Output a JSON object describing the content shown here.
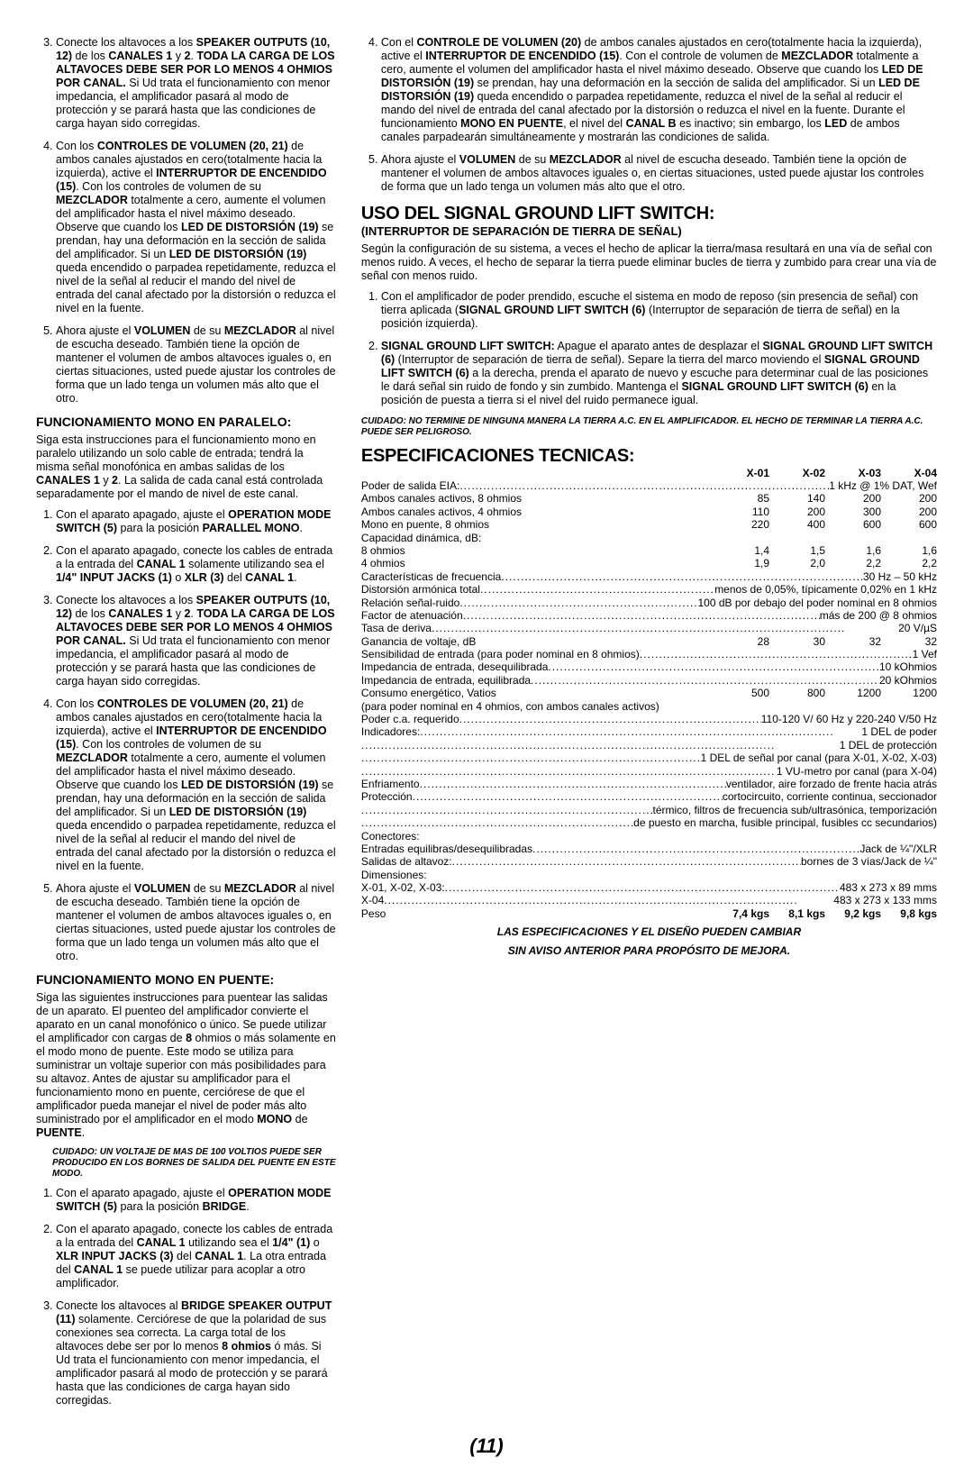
{
  "left": {
    "list1": {
      "start": 3,
      "items": [
        "Conecte los altavoces a los <b>SPEAKER OUTPUTS (10, 12)</b> de los <b>CANALES 1</b> y <b>2</b>. <b>TODA LA CARGA DE LOS ALTAVOCES DEBE SER POR LO MENOS 4 OHMIOS POR CANAL.</b> Si Ud trata el funcionamiento con menor impedancia, el amplificador pasará al modo de protección y se parará hasta que las condiciones de carga hayan sido corregidas.",
        "Con los <b>CONTROLES DE VOLUMEN (20, 21)</b> de ambos canales ajustados en cero(totalmente hacia la izquierda), active el <b>INTERRUPTOR DE ENCENDIDO (15)</b>. Con los controles de volumen de su <b>MEZCLADOR</b> totalmente a cero, aumente el volumen del amplificador hasta el nivel máximo deseado. Observe que cuando los <b>LED DE DISTORSIÓN (19)</b> se prendan, hay una deformación en la sección de salida del amplificador. Si un <b>LED DE DISTORSIÓN (19)</b> queda encendido o parpadea repetidamente, reduzca el nivel de la señal al reducir el mando del nivel de entrada del canal afectado por la distorsión o reduzca el nivel en la fuente.",
        "Ahora ajuste el <b>VOLUMEN</b> de su <b>MEZCLADOR</b> al nivel de escucha deseado. También tiene la opción de mantener el volumen de ambos altavoces iguales o, en ciertas situaciones, usted puede ajustar los controles de forma que un lado tenga un volumen más alto que el otro."
      ]
    },
    "h_paralelo": "FUNCIONAMIENTO MONO EN PARALELO:",
    "p_paralelo": "Siga esta instrucciones para el funcionamiento mono en paralelo utilizando un solo cable de entrada; tendrá la misma señal monofónica en ambas salidas de los <b>CANALES 1</b> y <b>2</b>. La salida de cada canal está controlada separadamente por el mando de nivel de este canal.",
    "list2": {
      "start": 1,
      "items": [
        "Con el aparato apagado, ajuste el <b>OPERATION MODE SWITCH (5)</b> para la posición <b>PARALLEL MONO</b>.",
        "Con el aparato apagado, conecte los cables de entrada a la entrada del <b>CANAL 1</b> solamente utilizando sea el <b>1/4\" INPUT JACKS (1)</b> o <b>XLR (3)</b> del <b>CANAL 1</b>.",
        "Conecte los altavoces a los <b>SPEAKER OUTPUTS (10, 12)</b> de los <b>CANALES 1</b> y <b>2</b>. <b>TODA LA CARGA DE LOS ALTAVOCES DEBE SER POR LO MENOS 4 OHMIOS POR CANAL.</b> Si Ud trata el funcionamiento con menor impedancia, el amplificador pasará al modo de protección y se parará hasta que las condiciones de carga hayan sido corregidas.",
        "Con los <b>CONTROLES DE VOLUMEN (20, 21)</b> de ambos canales ajustados en cero(totalmente hacia la izquierda), active el <b>INTERRUPTOR DE ENCENDIDO (15)</b>. Con los controles de volumen de su <b>MEZCLADOR</b> totalmente a cero, aumente el volumen del amplificador hasta el nivel máximo deseado. Observe que cuando los <b>LED DE DISTORSIÓN (19)</b> se prendan, hay una deformación en la sección de salida del amplificador. Si un <b>LED DE DISTORSIÓN (19)</b> queda encendido o parpadea repetidamente, reduzca el nivel de la señal al reducir el mando del nivel de entrada del canal afectado por la distorsión o reduzca el nivel en la fuente.",
        "Ahora ajuste el <b>VOLUMEN</b> de su <b>MEZCLADOR</b> al nivel de escucha deseado. También tiene la opción de mantener el volumen de ambos altavoces iguales o, en ciertas situaciones, usted puede ajustar los controles de forma que un lado tenga un volumen más alto que el otro."
      ]
    },
    "h_puente": "FUNCIONAMIENTO MONO EN PUENTE:",
    "p_puente": "Siga las siguientes instrucciones para puentear las salidas de un aparato. El puenteo del amplificador convierte el aparato en un canal monofónico o único. Se puede utilizar el amplificador con cargas de <b>8</b> ohmios o más solamente en el modo mono de puente. Este modo se utiliza para suministrar un voltaje superior con más posibilidades para su altavoz. Antes de ajustar su amplificador para el funcionamiento mono en puente, cerciórese de que el amplificador pueda manejar el nivel de poder más alto suministrado por el amplificador en el modo <b>MONO</b> de <b>PUENTE</b>.",
    "warn1": "CUIDADO: UN VOLTAJE DE MAS DE 100 VOLTIOS PUEDE SER PRODUCIDO EN LOS BORNES DE SALIDA DEL PUENTE EN ESTE MODO.",
    "list3": {
      "start": 1,
      "items": [
        "Con el aparato apagado, ajuste el <b>OPERATION MODE SWITCH (5)</b> para la posición <b>BRIDGE</b>.",
        "Con el aparato apagado, conecte los cables de entrada a la entrada del <b>CANAL 1</b> utilizando sea el <b>1/4\" (1)</b> o <b>XLR INPUT JACKS (3)</b> del <b>CANAL 1</b>. La otra entrada del <b>CANAL 1</b> se puede utilizar para acoplar a otro amplificador.",
        "Conecte los altavoces al <b>BRIDGE SPEAKER OUTPUT (11)</b> solamente. Cerciórese de que la polaridad de sus conexiones sea correcta. La carga total de los altavoces debe ser por lo menos <b>8 ohmios</b> ó más. Si Ud trata el funcionamiento con menor impedancia, el amplificador pasará al modo de protección y se parará hasta que las condiciones de carga hayan sido corregidas."
      ]
    }
  },
  "right": {
    "list4": {
      "start": 4,
      "items": [
        "Con el <b>CONTROLE DE VOLUMEN (20)</b> de ambos canales ajustados en cero(totalmente hacia la izquierda), active el <b>INTERRUPTOR DE ENCENDIDO (15)</b>. Con el controle de volumen de <b>MEZCLADOR</b> totalmente a cero, aumente el volumen del amplificador hasta el nivel máximo deseado. Observe que cuando los <b>LED DE DISTORSIÓN (19)</b> se prendan, hay una deformación en la sección de salida del amplificador. Si un <b>LED DE DISTORSIÓN (19)</b> queda encendido o parpadea repetidamente, reduzca el nivel de la señal al reducir el mando del nivel de entrada del canal afectado por la distorsión o reduzca el nivel en la fuente. Durante el funcionamiento <b>MONO EN PUENTE</b>, el nivel del <b>CANAL B</b> es inactivo; sin embargo, los <b>LED</b> de ambos canales parpadearán simultáneamente y mostrarán las condiciones de salida.",
        "Ahora ajuste el <b>VOLUMEN</b> de su <b>MEZCLADOR</b> al nivel de escucha deseado. También tiene la opción de mantener el volumen de ambos altavoces iguales o, en ciertas situaciones, usted puede ajustar los controles de forma que un lado tenga un volumen más alto que el otro."
      ]
    },
    "h_uso": "USO DEL SIGNAL GROUND LIFT SWITCH:",
    "sub_uso": "(INTERRUPTOR DE SEPARACIÓN DE TIERRA DE SEÑAL)",
    "p_uso": "Según la configuración de su sistema, a veces el hecho de aplicar la tierra/masa resultará en una vía de señal con menos ruido. A veces, el hecho de separar la tierra puede eliminar bucles de tierra y zumbido para crear una vía de señal con menos ruido.",
    "list5": {
      "start": 1,
      "items": [
        "Con el amplificador de poder prendido, escuche el sistema en modo de reposo (sin presencia de señal) con tierra aplicada (<b>SIGNAL GROUND LIFT SWITCH (6)</b> (Interruptor de separación de tierra de señal) en la posición izquierda).",
        "<b>SIGNAL GROUND LIFT SWITCH:</b> Apague el aparato antes de desplazar el <b>SIGNAL GROUND LIFT SWITCH (6)</b> (Interruptor de separación de tierra de señal). Separe la tierra del marco moviendo el <b>SIGNAL GROUND LIFT SWITCH (6)</b> a la derecha, prenda el aparato de nuevo y escuche para determinar cual de las posiciones le dará señal sin ruido de fondo y sin zumbido. Mantenga el <b>SIGNAL GROUND LIFT SWITCH (6)</b> en la posición de puesta a tierra si el nivel del ruido permanece igual."
      ]
    },
    "warn2": "CUIDADO: NO TERMINE DE NINGUNA MANERA LA TIERRA A.C. EN EL AMPLIFICADOR. EL HECHO DE TERMINAR LA TIERRA A.C. PUEDE SER PELIGROSO.",
    "h_spec": "ESPECIFICACIONES TECNICAS:",
    "spec": {
      "head": [
        "X-01",
        "X-02",
        "X-03",
        "X-04"
      ],
      "l1": "Poder de salida EIA:",
      "r1": "1 kHz @ 1% DAT, Wef",
      "rows": [
        {
          "label": "Ambos canales activos, 8 ohmios",
          "v": [
            "85",
            "140",
            "200",
            "200"
          ]
        },
        {
          "label": "Ambos canales activos, 4 ohmios",
          "v": [
            "110",
            "200",
            "300",
            "200"
          ]
        },
        {
          "label": "Mono en puente, 8 ohmios",
          "v": [
            "220",
            "400",
            "600",
            "600"
          ]
        }
      ],
      "cap_label": "Capacidad dinámica, dB:",
      "rows2": [
        {
          "label": "8 ohmios",
          "v": [
            "1,4",
            "1,5",
            "1,6",
            "1,6"
          ]
        },
        {
          "label": "4 ohmios",
          "v": [
            "1,9",
            "2,0",
            "2,2",
            "2,2"
          ]
        }
      ],
      "lines": [
        {
          "l": "Características de frecuencia",
          "r": "30 Hz – 50 kHz"
        },
        {
          "l": "Distorsión armónica total",
          "r": "menos de 0,05%, típicamente 0,02% en 1 kHz"
        },
        {
          "l": "Relación señal-ruido",
          "r": "100 dB por debajo del poder nominal en 8 ohmios"
        },
        {
          "l": "Factor de atenuación",
          "r": "más de 200 @ 8 ohmios"
        },
        {
          "l": "Tasa de deriva",
          "r": "20 V/µS"
        }
      ],
      "gain": {
        "label": "Ganancia de voltaje, dB",
        "v": [
          "28",
          "30",
          "32",
          "32"
        ]
      },
      "lines2": [
        {
          "l": "Sensibilidad de entrada (para poder nominal en 8 ohmios)",
          "r": "1 Vef"
        },
        {
          "l": "Impedancia de entrada, desequilibrada",
          "r": "10 kOhmios"
        },
        {
          "l": "Impedancia de entrada, equilibrada",
          "r": "20 kOhmios"
        }
      ],
      "consumo": {
        "label": "Consumo energético, Vatios",
        "v": [
          "500",
          "800",
          "1200",
          "1200"
        ]
      },
      "consumo_note": "(para poder nominal en 4 ohmios, con ambos canales activos)",
      "lines3": [
        {
          "l": "Poder c.a. requerido",
          "r": "110-120 V/ 60 Hz y 220-240 V/50 Hz"
        },
        {
          "l": "Indicadores:",
          "r": "1 DEL de poder"
        },
        {
          "l": "",
          "r": "1 DEL de protección"
        },
        {
          "l": "",
          "r": "1 DEL de señal por canal (para X-01, X-02, X-03)"
        },
        {
          "l": "",
          "r": "1 VU-metro por canal (para X-04)"
        },
        {
          "l": "Enfriamento",
          "r": "ventilador, aire forzado de frente hacia atrás"
        },
        {
          "l": "Protección",
          "r": "cortocircuito, corriente continua, seccionador"
        },
        {
          "l": "",
          "r": "térmico, filtros de frecuencia sub/ultrasónica, temporización"
        },
        {
          "l": "",
          "r": "de puesto en marcha, fusible principal, fusibles cc secundarios)"
        }
      ],
      "con_label": "Conectores:",
      "lines4": [
        {
          "l": "Entradas equilibras/desequilibradas",
          "r": "Jack de ¼\"/XLR"
        },
        {
          "l": "Salidas de altavoz:",
          "r": "bornes de 3 vías/Jack de ¼\""
        }
      ],
      "dim_label": "Dimensiones:",
      "lines5": [
        {
          "l": "X-01, X-02, X-03:",
          "r": "483 x 273 x 89 mms"
        },
        {
          "l": "X-04",
          "r": "483 x 273 x 133 mms"
        }
      ],
      "peso": {
        "label": "Peso",
        "v": [
          "7,4 kgs",
          "8,1 kgs",
          "9,2 kgs",
          "9,8 kgs"
        ]
      }
    },
    "foot1": "LAS ESPECIFICACIONES Y EL DISEÑO PUEDEN CAMBIAR",
    "foot2": "SIN AVISO ANTERIOR PARA PROPÓSITO DE MEJORA."
  },
  "pagenum": "(11)"
}
